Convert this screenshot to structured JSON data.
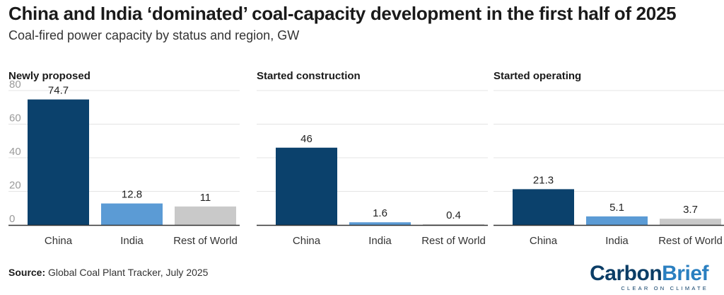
{
  "title": "China and India ‘dominated’ coal-capacity development in the first half of 2025",
  "subtitle": "Coal-fired power capacity by status and region, GW",
  "source_label": "Source:",
  "source_text": "Global Coal Plant Tracker, July 2025",
  "logo": {
    "part1": "Carbon",
    "part2": "Brief",
    "tagline": "CLEAR ON CLIMATE"
  },
  "colors": {
    "China": "#0b416c",
    "India": "#5b9bd5",
    "Rest of World": "#c9c9c9",
    "axis": "#333333",
    "grid": "#e4e4e4",
    "tick": "#9a9a9a"
  },
  "chart_data": {
    "type": "bar",
    "categories": [
      "China",
      "India",
      "Rest of World"
    ],
    "ylim": [
      0,
      80
    ],
    "yticks": [
      "0",
      "20",
      "40",
      "60",
      "80"
    ],
    "panels": [
      {
        "title": "Newly proposed",
        "values": [
          74.7,
          12.8,
          11
        ],
        "labels": [
          "74.7",
          "12.8",
          "11"
        ]
      },
      {
        "title": "Started construction",
        "values": [
          46,
          1.6,
          0.4
        ],
        "labels": [
          "46",
          "1.6",
          "0.4"
        ]
      },
      {
        "title": "Started operating",
        "values": [
          21.3,
          5.1,
          3.7
        ],
        "labels": [
          "21.3",
          "5.1",
          "3.7"
        ]
      }
    ]
  }
}
